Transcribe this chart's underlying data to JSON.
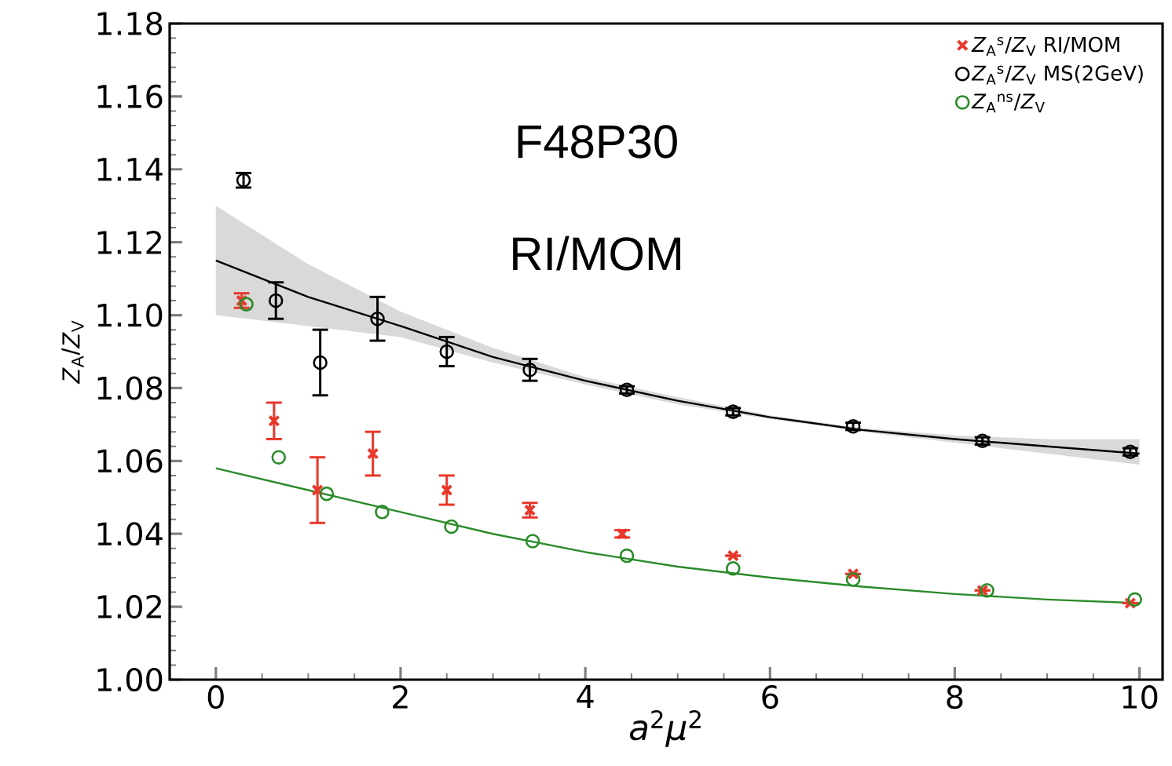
{
  "chart_data": {
    "type": "scatter",
    "xlabel": "*a*$^{2}$*μ*$^{2}$",
    "ylabel": "*Z*$_{A}$/*Z*$_{V}$",
    "annotations": [
      "F48P30",
      "RI/MOM"
    ],
    "xlim": [
      -0.5,
      10.25
    ],
    "ylim": [
      1.0,
      1.18
    ],
    "xticks": [
      0,
      2,
      4,
      6,
      8,
      10
    ],
    "yticks": [
      {
        "value": 1.0,
        "label": "1.00"
      },
      {
        "value": 1.02,
        "label": "1.02"
      },
      {
        "value": 1.04,
        "label": "1.04"
      },
      {
        "value": 1.06,
        "label": "1.06"
      },
      {
        "value": 1.08,
        "label": "1.08"
      },
      {
        "value": 1.1,
        "label": "1.10"
      },
      {
        "value": 1.12,
        "label": "1.12"
      },
      {
        "value": 1.14,
        "label": "1.14"
      },
      {
        "value": 1.16,
        "label": "1.16"
      },
      {
        "value": 1.18,
        "label": "1.18"
      }
    ],
    "legend": "top right",
    "series": [
      {
        "type": "line",
        "color": "#000000",
        "marker": "none",
        "x": [
          0,
          1,
          2,
          3,
          4,
          5,
          6,
          7,
          8,
          9,
          10
        ],
        "values": [
          1.115,
          1.105,
          1.097,
          1.0885,
          1.082,
          1.0765,
          1.072,
          1.0685,
          1.066,
          1.064,
          1.062
        ],
        "lower": [
          1.1,
          1.097,
          1.094,
          1.087,
          1.081,
          1.0755,
          1.0715,
          1.068,
          1.065,
          1.062,
          1.059
        ],
        "upper": [
          1.13,
          1.114,
          1.101,
          1.091,
          1.083,
          1.0775,
          1.0725,
          1.069,
          1.067,
          1.066,
          1.066
        ]
      },
      {
        "type": "line",
        "color": "#2a8c2a",
        "marker": "none",
        "x": [
          0,
          1,
          2,
          3,
          4,
          5,
          6,
          7,
          8,
          9,
          10
        ],
        "values": [
          1.058,
          1.052,
          1.046,
          1.04,
          1.035,
          1.031,
          1.028,
          1.0255,
          1.0235,
          1.022,
          1.021
        ]
      },
      {
        "name": "*Z*$_{A}$$^{s}$/*Z*$_{V}$ RI/MOM",
        "color": "#e8382a",
        "marker": "cross",
        "x": [
          0.28,
          0.63,
          1.1,
          1.7,
          2.5,
          3.4,
          4.4,
          5.6,
          6.9,
          8.3,
          9.9
        ],
        "values": [
          1.104,
          1.071,
          1.052,
          1.062,
          1.052,
          1.0465,
          1.04,
          1.034,
          1.029,
          1.0245,
          1.021
        ],
        "errors": [
          0.002,
          0.005,
          0.009,
          0.006,
          0.004,
          0.002,
          0.001,
          null,
          null,
          null,
          null
        ]
      },
      {
        "name": "*Z*$_{A}$$^{s}$/*Z*$_{V}$ MS(2GeV)",
        "color": "#000000",
        "marker": "circle",
        "x": [
          0.3,
          0.65,
          1.13,
          1.75,
          2.5,
          3.4,
          4.45,
          5.6,
          6.9,
          8.3,
          9.9
        ],
        "values": [
          1.137,
          1.104,
          1.087,
          1.099,
          1.09,
          1.085,
          1.0795,
          1.0735,
          1.0695,
          1.0655,
          1.0625
        ],
        "errors": [
          0.002,
          0.005,
          0.009,
          0.006,
          0.004,
          0.003,
          0.001,
          0.001,
          0.001,
          0.001,
          0.001
        ]
      },
      {
        "name": "*Z*$_{A}$$^{ns}$/*Z*$_{V}$",
        "color": "#2a8c2a",
        "marker": "circle",
        "x": [
          0.33,
          0.68,
          1.2,
          1.8,
          2.55,
          3.43,
          4.45,
          5.6,
          6.9,
          8.35,
          9.95
        ],
        "values": [
          1.103,
          1.061,
          1.051,
          1.046,
          1.042,
          1.038,
          1.034,
          1.0305,
          1.0275,
          1.0245,
          1.022
        ]
      }
    ]
  }
}
